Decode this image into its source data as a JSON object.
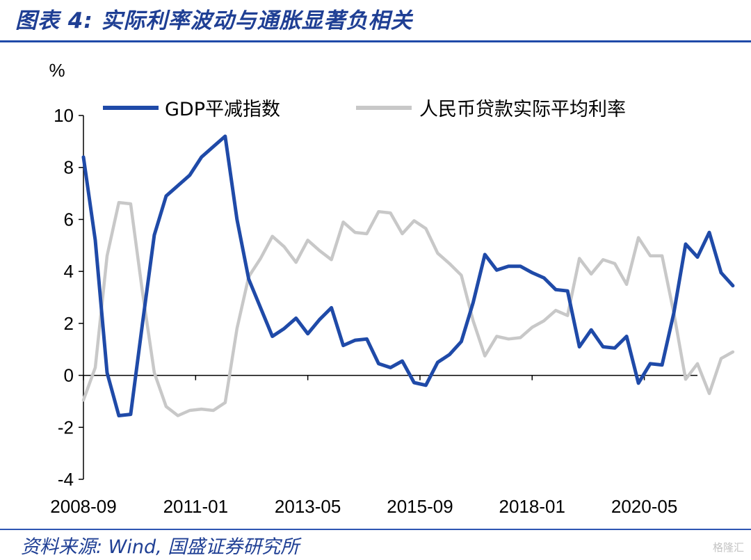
{
  "header": {
    "title": "图表 4:  实际利率波动与通胀显著负相关"
  },
  "footer": {
    "source": "资料来源:  Wind,  国盛证券研究所",
    "watermark": "格隆汇"
  },
  "chart_data": {
    "type": "line",
    "title": "图表 4:  实际利率波动与通胀显著负相关",
    "ylabel": "%",
    "xlabel": "",
    "ylim": [
      -4,
      10
    ],
    "yticks": [
      -4,
      -2,
      0,
      2,
      4,
      6,
      8,
      10
    ],
    "xlim": [
      0,
      52
    ],
    "xticks": [
      {
        "i": 0,
        "label": "2008-09"
      },
      {
        "i": 9.5,
        "label": "2011-01"
      },
      {
        "i": 19,
        "label": "2013-05"
      },
      {
        "i": 28.5,
        "label": "2015-09"
      },
      {
        "i": 38,
        "label": "2018-01"
      },
      {
        "i": 47.5,
        "label": "2020-05"
      }
    ],
    "grid": false,
    "legend_position": "top",
    "series": [
      {
        "name": "GDP平减指数",
        "color": "#1f4aa8",
        "values": [
          8.4,
          5.2,
          0.1,
          -1.55,
          -1.5,
          2.0,
          5.4,
          6.9,
          7.3,
          7.7,
          8.4,
          8.8,
          9.2,
          6.0,
          3.7,
          2.6,
          1.5,
          1.8,
          2.2,
          1.6,
          2.15,
          2.6,
          1.15,
          1.35,
          1.4,
          0.45,
          0.3,
          0.55,
          -0.28,
          -0.38,
          0.5,
          0.8,
          1.3,
          2.8,
          4.65,
          4.05,
          4.2,
          4.2,
          3.95,
          3.75,
          3.3,
          3.25,
          1.1,
          1.75,
          1.1,
          1.05,
          1.5,
          -0.3,
          0.45,
          0.4,
          2.4,
          5.05,
          4.55,
          5.5,
          3.95,
          3.45
        ]
      },
      {
        "name": "人民币贷款实际平均利率",
        "color": "#c8c8c8",
        "values": [
          -0.95,
          0.3,
          4.6,
          6.65,
          6.6,
          3.2,
          0.1,
          -1.2,
          -1.55,
          -1.35,
          -1.3,
          -1.35,
          -1.05,
          1.8,
          3.8,
          4.5,
          5.35,
          4.95,
          4.35,
          5.2,
          4.8,
          4.45,
          5.9,
          5.5,
          5.45,
          6.3,
          6.25,
          5.45,
          5.95,
          5.65,
          4.7,
          4.3,
          3.85,
          2.1,
          0.75,
          1.5,
          1.4,
          1.45,
          1.85,
          2.1,
          2.5,
          2.3,
          4.5,
          3.9,
          4.45,
          4.3,
          3.5,
          5.3,
          4.6,
          4.6,
          2.4,
          -0.15,
          0.45,
          -0.7,
          0.65,
          0.9
        ]
      }
    ]
  }
}
